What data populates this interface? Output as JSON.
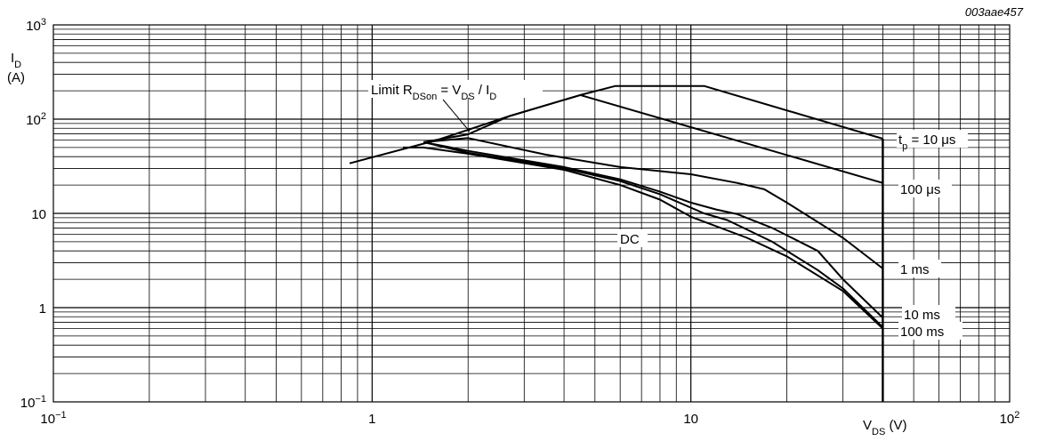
{
  "figure_code": "003aae457",
  "chart_data": {
    "type": "line",
    "x_scale": "log",
    "y_scale": "log",
    "xlim": [
      0.1,
      100
    ],
    "ylim": [
      0.1,
      1000
    ],
    "grid": true,
    "x_ticks": [
      {
        "value": 0.1,
        "mantissa": "10",
        "exp": "−1"
      },
      {
        "value": 1,
        "mantissa": "1",
        "exp": ""
      },
      {
        "value": 10,
        "mantissa": "10",
        "exp": ""
      },
      {
        "value": 100,
        "mantissa": "10",
        "exp": "2"
      }
    ],
    "y_ticks": [
      {
        "value": 0.1,
        "mantissa": "10",
        "exp": "−1"
      },
      {
        "value": 1,
        "mantissa": "1",
        "exp": ""
      },
      {
        "value": 10,
        "mantissa": "10",
        "exp": ""
      },
      {
        "value": 100,
        "mantissa": "10",
        "exp": "2"
      },
      {
        "value": 1000,
        "mantissa": "10",
        "exp": "3"
      }
    ],
    "xlabel": {
      "main": "V",
      "sub": "DS",
      "unit": " (V)"
    },
    "ylabel": {
      "main": "I",
      "sub": "D",
      "unit": "(A)"
    },
    "annotation_limit": {
      "a": "Limit R",
      "a_sub": "DSon",
      "b": " = V",
      "b_sub": "DS",
      "c": " / I",
      "c_sub": "D"
    },
    "series": [
      {
        "name": "tp = 10 μs",
        "label_main": "t",
        "label_sub": "p",
        "label_rest": " = 10 μs",
        "points": [
          [
            0.85,
            34
          ],
          [
            1.6,
            60
          ],
          [
            2.7,
            108
          ],
          [
            4.5,
            180
          ],
          [
            5.8,
            225
          ],
          [
            11,
            225
          ],
          [
            40,
            62
          ]
        ]
      },
      {
        "name": "100 μs",
        "label_main": "100 μs",
        "label_sub": "",
        "label_rest": "",
        "points": [
          [
            1.45,
            57
          ],
          [
            2,
            69
          ],
          [
            2.7,
            108
          ],
          [
            4.5,
            180
          ],
          [
            40,
            21
          ]
        ]
      },
      {
        "name": "1 ms",
        "label_main": "1 ms",
        "label_sub": "",
        "label_rest": "",
        "points": [
          [
            1.45,
            57
          ],
          [
            2,
            63
          ],
          [
            3.5,
            42
          ],
          [
            6,
            31
          ],
          [
            10,
            26
          ],
          [
            14,
            21
          ],
          [
            17,
            18
          ],
          [
            20,
            13
          ],
          [
            30,
            5.5
          ],
          [
            40,
            2.6
          ]
        ]
      },
      {
        "name": "10 ms",
        "label_main": "10 ms",
        "label_sub": "",
        "label_rest": "",
        "points": [
          [
            1.45,
            57
          ],
          [
            2,
            46
          ],
          [
            4,
            31
          ],
          [
            6,
            23
          ],
          [
            8,
            17
          ],
          [
            10,
            13
          ],
          [
            12,
            11
          ],
          [
            14,
            9.8
          ],
          [
            18,
            7
          ],
          [
            25,
            4
          ],
          [
            30,
            2
          ],
          [
            40,
            0.78
          ]
        ]
      },
      {
        "name": "100 ms",
        "label_main": "100 ms",
        "label_sub": "",
        "label_rest": "",
        "points": [
          [
            1.45,
            57
          ],
          [
            2,
            44
          ],
          [
            4,
            30
          ],
          [
            6,
            22
          ],
          [
            8,
            16
          ],
          [
            10,
            11.5
          ],
          [
            11,
            10
          ],
          [
            13,
            8.5
          ],
          [
            18,
            5
          ],
          [
            25,
            2.5
          ],
          [
            30,
            1.6
          ],
          [
            40,
            0.62
          ]
        ]
      },
      {
        "name": "DC",
        "label_main": "DC",
        "label_sub": "",
        "label_rest": "",
        "points": [
          [
            1.25,
            50
          ],
          [
            1.45,
            50
          ],
          [
            2,
            43
          ],
          [
            4,
            29
          ],
          [
            6,
            20
          ],
          [
            8,
            14
          ],
          [
            10,
            9.2
          ],
          [
            15,
            5.5
          ],
          [
            20,
            3.5
          ],
          [
            30,
            1.5
          ],
          [
            40,
            0.6
          ]
        ]
      }
    ],
    "vertical_limit_x": 40
  }
}
